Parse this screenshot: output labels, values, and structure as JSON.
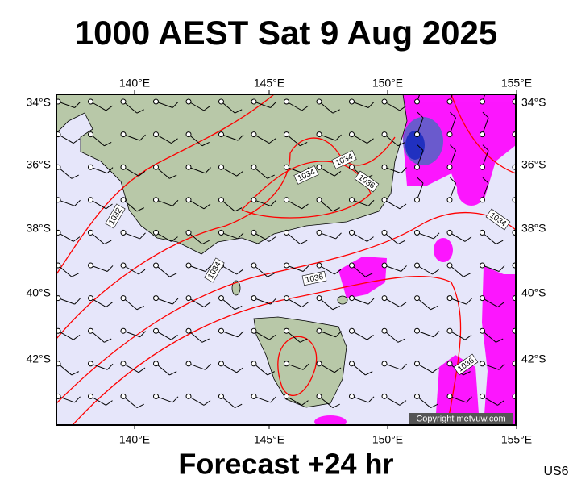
{
  "title": "1000 AEST Sat 9 Aug 2025",
  "footer": "Forecast +24 hr",
  "code": "US6",
  "copyright": "Copyright metvuw.com",
  "lon_labels": [
    "140°E",
    "145°E",
    "150°E",
    "155°E"
  ],
  "lat_labels": [
    "34°S",
    "36°S",
    "38°S",
    "40°S",
    "42°S"
  ],
  "isobar_labels": [
    "1034",
    "1034",
    "1036",
    "1032",
    "1034",
    "1036",
    "1034",
    "1036"
  ]
}
